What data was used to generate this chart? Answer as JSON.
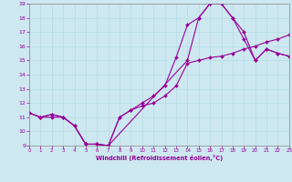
{
  "bg_color": "#cde8f0",
  "line_color": "#990099",
  "xlim": [
    0,
    23
  ],
  "ylim": [
    9,
    19
  ],
  "xticks": [
    0,
    1,
    2,
    3,
    4,
    5,
    6,
    7,
    8,
    9,
    10,
    11,
    12,
    13,
    14,
    15,
    16,
    17,
    18,
    19,
    20,
    21,
    22,
    23
  ],
  "yticks": [
    9,
    10,
    11,
    12,
    13,
    14,
    15,
    16,
    17,
    18,
    19
  ],
  "xlabel": "Windchill (Refroidissement éolien,°C)",
  "curve1_x": [
    0,
    1,
    2,
    3,
    4,
    5,
    6,
    7,
    8,
    9,
    10,
    11,
    12,
    13,
    14,
    15,
    16,
    17,
    18,
    19,
    20,
    21,
    22,
    23
  ],
  "curve1_y": [
    11.3,
    11.0,
    11.2,
    11.0,
    10.4,
    9.1,
    9.1,
    9.0,
    11.0,
    11.5,
    12.0,
    12.5,
    13.2,
    15.2,
    17.5,
    18.0,
    19.0,
    19.0,
    18.0,
    16.5,
    15.0,
    15.8,
    15.5,
    15.3
  ],
  "curve2_x": [
    0,
    1,
    2,
    3,
    4,
    5,
    6,
    7,
    8,
    9,
    10,
    11,
    12,
    13,
    14,
    15,
    16,
    17,
    18,
    19,
    20,
    21,
    22,
    23
  ],
  "curve2_y": [
    11.3,
    11.0,
    11.0,
    11.0,
    10.4,
    9.1,
    9.1,
    9.0,
    11.0,
    11.5,
    11.8,
    12.0,
    12.5,
    13.2,
    14.8,
    15.0,
    15.2,
    15.3,
    15.5,
    15.8,
    16.0,
    16.3,
    16.5,
    16.8
  ],
  "curve3_x": [
    0,
    1,
    2,
    3,
    4,
    5,
    6,
    7,
    14,
    15,
    16,
    17,
    18,
    19,
    20,
    21,
    22,
    23
  ],
  "curve3_y": [
    11.3,
    11.0,
    11.2,
    11.0,
    10.4,
    9.1,
    9.1,
    9.0,
    15.0,
    18.0,
    19.0,
    19.0,
    18.0,
    17.0,
    15.0,
    15.8,
    15.5,
    15.3
  ]
}
